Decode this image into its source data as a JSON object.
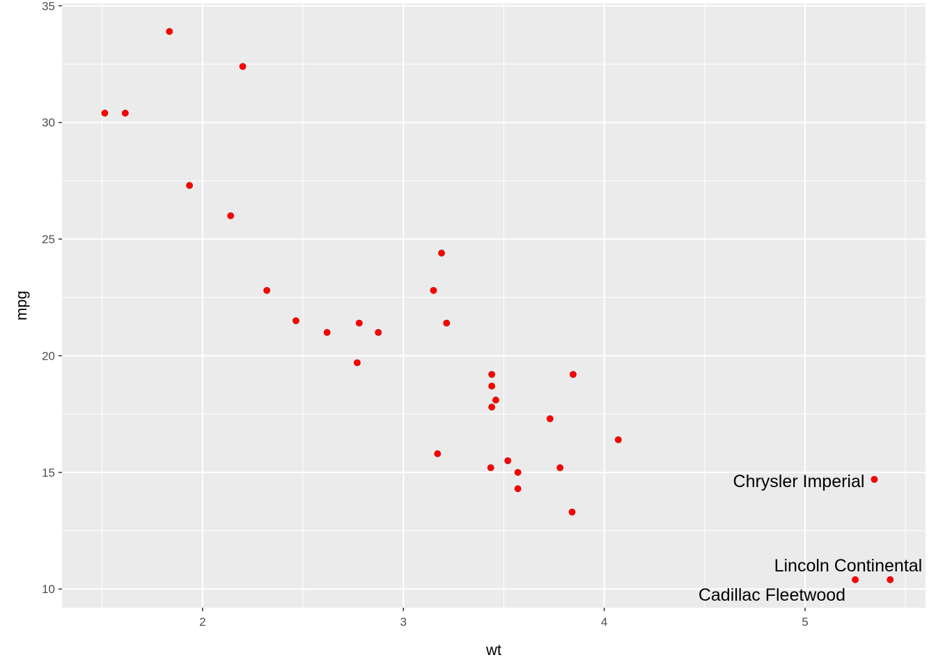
{
  "chart_data": {
    "type": "scatter",
    "title": "",
    "xlabel": "wt",
    "ylabel": "mpg",
    "xlim": [
      1.3,
      5.6
    ],
    "ylim": [
      9.2,
      35.1
    ],
    "x_ticks": [
      2,
      3,
      4,
      5
    ],
    "x_tick_labels": [
      "2",
      "3",
      "4",
      "5"
    ],
    "y_ticks": [
      10,
      15,
      20,
      25,
      30,
      35
    ],
    "y_tick_labels": [
      "10",
      "15",
      "20",
      "25",
      "30",
      "35"
    ],
    "grid": true,
    "background": "#ebebeb",
    "grid_color": "#ffffff",
    "point_color": "#ff0000",
    "points": [
      {
        "x": 2.62,
        "y": 21.0
      },
      {
        "x": 2.875,
        "y": 21.0
      },
      {
        "x": 2.32,
        "y": 22.8
      },
      {
        "x": 3.215,
        "y": 21.4
      },
      {
        "x": 3.44,
        "y": 18.7
      },
      {
        "x": 3.46,
        "y": 18.1
      },
      {
        "x": 3.57,
        "y": 14.3
      },
      {
        "x": 3.19,
        "y": 24.4
      },
      {
        "x": 3.15,
        "y": 22.8
      },
      {
        "x": 3.44,
        "y": 19.2
      },
      {
        "x": 3.44,
        "y": 17.8
      },
      {
        "x": 4.07,
        "y": 16.4
      },
      {
        "x": 3.73,
        "y": 17.3
      },
      {
        "x": 3.78,
        "y": 15.2
      },
      {
        "x": 5.25,
        "y": 10.4
      },
      {
        "x": 5.424,
        "y": 10.4
      },
      {
        "x": 5.345,
        "y": 14.7
      },
      {
        "x": 2.2,
        "y": 32.4
      },
      {
        "x": 1.615,
        "y": 30.4
      },
      {
        "x": 1.835,
        "y": 33.9
      },
      {
        "x": 2.465,
        "y": 21.5
      },
      {
        "x": 3.52,
        "y": 15.5
      },
      {
        "x": 3.435,
        "y": 15.2
      },
      {
        "x": 3.84,
        "y": 13.3
      },
      {
        "x": 3.845,
        "y": 19.2
      },
      {
        "x": 1.935,
        "y": 27.3
      },
      {
        "x": 2.14,
        "y": 26.0
      },
      {
        "x": 1.513,
        "y": 30.4
      },
      {
        "x": 3.17,
        "y": 15.8
      },
      {
        "x": 2.77,
        "y": 19.7
      },
      {
        "x": 3.57,
        "y": 15.0
      },
      {
        "x": 2.78,
        "y": 21.4
      }
    ],
    "annotations": [
      {
        "text": "Chrysler Imperial",
        "x": 5.345,
        "y": 14.7,
        "anchor": "end"
      },
      {
        "text": "Lincoln Continental",
        "x": 5.424,
        "y": 10.4,
        "anchor": "end"
      },
      {
        "text": "Cadillac Fleetwood",
        "x": 5.25,
        "y": 10.4,
        "anchor": "end"
      }
    ]
  }
}
